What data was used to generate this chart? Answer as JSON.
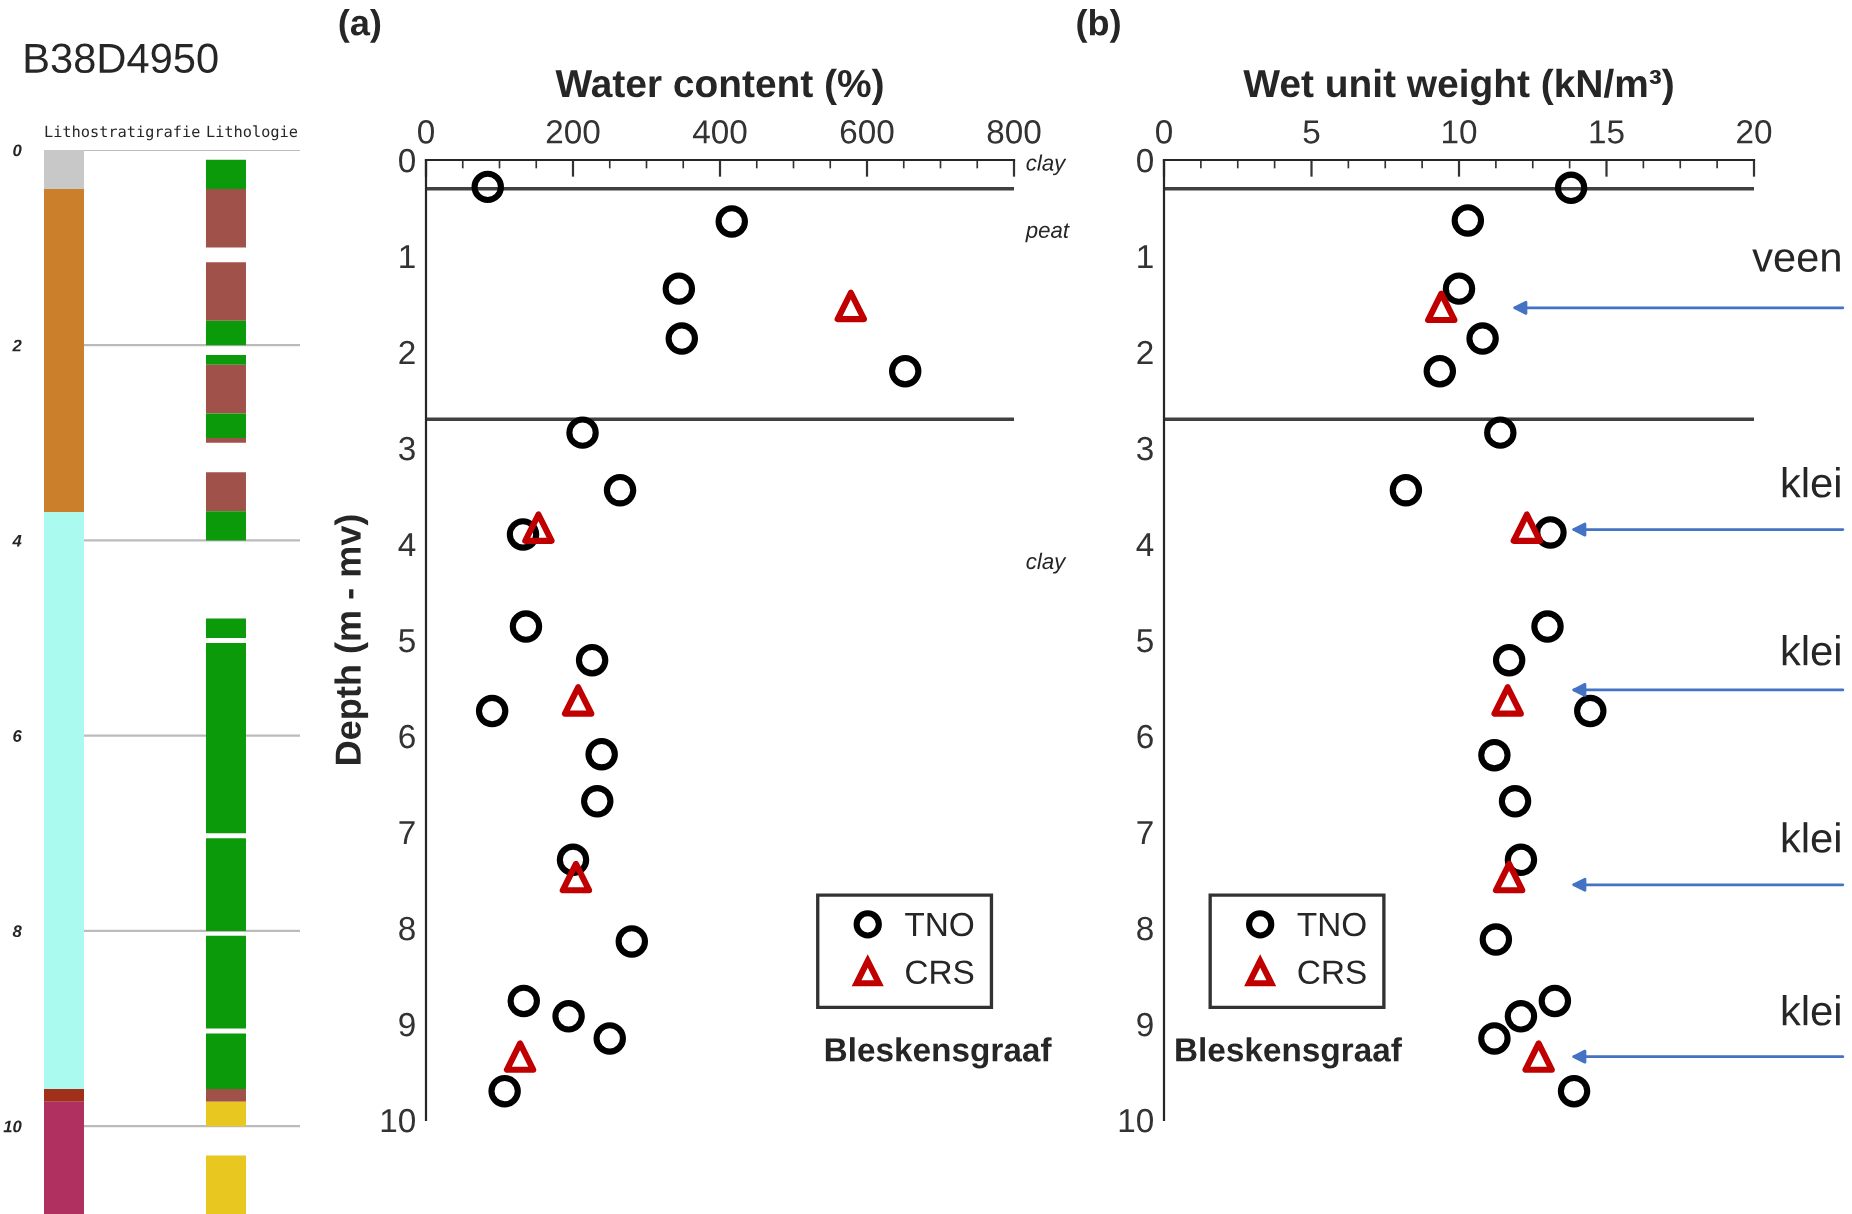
{
  "chart_data": [
    {
      "type": "bar",
      "title": "B38D4950",
      "categories": [
        "Lithostratigrafie",
        "Lithologie"
      ],
      "ylim": [
        10.9,
        0
      ],
      "yticks": [
        0,
        2,
        4,
        6,
        8,
        10
      ],
      "grid": "y",
      "series": [
        {
          "color": "#c8c8c8",
          "base": [
            0,
            null
          ],
          "values": [
            0.4,
            null
          ]
        },
        {
          "color": "#cc7f2a",
          "base": [
            0.4,
            null
          ],
          "values": [
            3.31,
            null
          ]
        },
        {
          "color": "#aafaf0",
          "base": [
            3.71,
            null
          ],
          "values": [
            5.91,
            null
          ]
        },
        {
          "color": "#a0301a",
          "base": [
            9.62,
            null
          ],
          "values": [
            0.13,
            null
          ]
        },
        {
          "color": "#b03060",
          "base": [
            9.75,
            null
          ],
          "values": [
            1.15,
            null
          ]
        },
        {
          "color": "#0a9a0a",
          "base": [
            null,
            0.1
          ],
          "values": [
            null,
            0.3
          ]
        },
        {
          "color": "#a0524a",
          "base": [
            null,
            0.4
          ],
          "values": [
            null,
            0.6
          ]
        },
        {
          "color": "#a0524a",
          "base": [
            null,
            1.15
          ],
          "values": [
            null,
            0.6
          ]
        },
        {
          "color": "#0a9a0a",
          "base": [
            null,
            1.75
          ],
          "values": [
            null,
            0.25
          ]
        },
        {
          "color": "#0a9a0a",
          "base": [
            null,
            2.1
          ],
          "values": [
            null,
            0.1
          ]
        },
        {
          "color": "#a0524a",
          "base": [
            null,
            2.2
          ],
          "values": [
            null,
            0.5
          ]
        },
        {
          "color": "#0a9a0a",
          "base": [
            null,
            2.7
          ],
          "values": [
            null,
            0.25
          ]
        },
        {
          "color": "#a0524a",
          "base": [
            null,
            2.95
          ],
          "values": [
            null,
            0.05
          ]
        },
        {
          "color": "#a0524a",
          "base": [
            null,
            3.3
          ],
          "values": [
            null,
            0.4
          ]
        },
        {
          "color": "#0a9a0a",
          "base": [
            null,
            3.7
          ],
          "values": [
            null,
            0.3
          ]
        },
        {
          "color": "#0a9a0a",
          "base": [
            null,
            4.8
          ],
          "values": [
            null,
            0.2
          ]
        },
        {
          "color": "#0a9a0a",
          "base": [
            null,
            5.05
          ],
          "values": [
            null,
            1.95
          ]
        },
        {
          "color": "#0a9a0a",
          "base": [
            null,
            7.05
          ],
          "values": [
            null,
            0.95
          ]
        },
        {
          "color": "#0a9a0a",
          "base": [
            null,
            8.05
          ],
          "values": [
            null,
            0.95
          ]
        },
        {
          "color": "#0a9a0a",
          "base": [
            null,
            9.05
          ],
          "values": [
            null,
            0.57
          ]
        },
        {
          "color": "#a0524a",
          "base": [
            null,
            9.62
          ],
          "values": [
            null,
            0.13
          ]
        },
        {
          "color": "#e8c820",
          "base": [
            null,
            9.75
          ],
          "values": [
            null,
            0.25
          ]
        },
        {
          "color": "#e8c820",
          "base": [
            null,
            10.3
          ],
          "values": [
            null,
            0.6
          ]
        }
      ]
    },
    {
      "type": "scatter",
      "title": "(a)",
      "xlabel": "Water content (%)",
      "ylabel": "Depth (m - mv)",
      "xlim": [
        0,
        800
      ],
      "xticks": [
        0,
        200,
        400,
        600,
        800
      ],
      "ylim": [
        10,
        0
      ],
      "yticks": [
        0,
        1,
        2,
        3,
        4,
        5,
        6,
        7,
        8,
        9,
        10
      ],
      "legend": "bottom right",
      "series": [
        {
          "name": "TNO",
          "color": "#000000",
          "marker": "circle",
          "x": [
            84,
            416,
            344,
            348,
            652,
            213,
            264,
            132,
            136,
            226,
            90,
            239,
            233,
            200,
            280,
            133,
            194,
            250,
            107
          ],
          "values": [
            0.28,
            0.64,
            1.34,
            1.86,
            2.2,
            2.84,
            3.44,
            3.9,
            4.86,
            5.21,
            5.74,
            6.19,
            6.68,
            7.29,
            8.14,
            8.76,
            8.92,
            9.15,
            9.7
          ]
        },
        {
          "name": "CRS",
          "color": "#c00000",
          "marker": "triangle",
          "x": [
            578,
            153,
            207,
            204,
            128
          ],
          "values": [
            1.52,
            3.83,
            5.63,
            7.47,
            9.34
          ]
        }
      ],
      "ref_lines": [
        {
          "axis": "y",
          "value": 0.3,
          "label": null,
          "color": "#404040"
        },
        {
          "axis": "y",
          "value": 2.7,
          "label": null,
          "color": "#404040"
        }
      ],
      "annotations": [
        "clay",
        "peat",
        "clay",
        "Bleskensgraaf"
      ]
    },
    {
      "type": "scatter",
      "title": "(b)",
      "xlabel": "Wet unit weight (kN/m³)",
      "xlim": [
        0,
        20
      ],
      "xticks": [
        0,
        5,
        10,
        15,
        20
      ],
      "ylim": [
        10,
        0
      ],
      "yticks": [
        0,
        1,
        2,
        3,
        4,
        5,
        6,
        7,
        8,
        9,
        10
      ],
      "legend": "bottom left",
      "series": [
        {
          "name": "TNO",
          "color": "#000000",
          "marker": "circle",
          "x": [
            13.8,
            10.3,
            10.0,
            10.8,
            9.35,
            11.4,
            8.2,
            13.1,
            13.0,
            11.7,
            14.45,
            11.2,
            11.9,
            12.1,
            11.25,
            13.25,
            12.1,
            11.2,
            13.9
          ],
          "values": [
            0.29,
            0.63,
            1.34,
            1.86,
            2.2,
            2.84,
            3.44,
            3.88,
            4.86,
            5.21,
            5.74,
            6.2,
            6.68,
            7.29,
            8.12,
            8.76,
            8.92,
            9.15,
            9.7
          ]
        },
        {
          "name": "CRS",
          "color": "#c00000",
          "marker": "triangle",
          "x": [
            9.4,
            12.3,
            11.65,
            11.7,
            12.7
          ],
          "values": [
            1.53,
            3.83,
            5.63,
            7.47,
            9.34
          ]
        }
      ],
      "ref_lines": [
        {
          "axis": "y",
          "value": 0.3,
          "label": null,
          "color": "#404040"
        },
        {
          "axis": "y",
          "value": 2.7,
          "label": null,
          "color": "#404040"
        }
      ],
      "annotations": [
        "Bleskensgraaf",
        "veen",
        "klei",
        "klei",
        "klei",
        "klei"
      ]
    }
  ]
}
